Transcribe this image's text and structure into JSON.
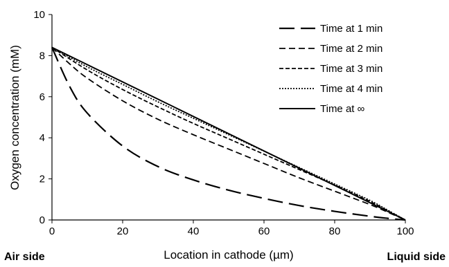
{
  "chart_data": {
    "type": "line",
    "xlabel": "Location in cathode (µm)",
    "ylabel": "Oxygen concentration (mM)",
    "xlim": [
      0,
      100
    ],
    "ylim": [
      0,
      10
    ],
    "x_ticks": [
      "0",
      "20",
      "40",
      "60",
      "80",
      "100"
    ],
    "y_ticks": [
      "0",
      "2",
      "4",
      "6",
      "8",
      "10"
    ],
    "grid": false,
    "legend_position": "top-right",
    "side_labels": {
      "left": "Air side",
      "right": "Liquid side"
    },
    "series": [
      {
        "name": "Time at 1 min",
        "style": "long-dash",
        "x": [
          0,
          5,
          10,
          20,
          30,
          40,
          50,
          60,
          70,
          80,
          90,
          95,
          100
        ],
        "y": [
          8.4,
          6.5,
          5.2,
          3.6,
          2.6,
          1.95,
          1.45,
          1.05,
          0.7,
          0.42,
          0.18,
          0.08,
          0.0
        ]
      },
      {
        "name": "Time at 2 min",
        "style": "dash",
        "x": [
          0,
          5,
          10,
          20,
          30,
          40,
          50,
          60,
          70,
          80,
          90,
          95,
          100
        ],
        "y": [
          8.4,
          7.6,
          6.9,
          5.8,
          4.9,
          4.15,
          3.45,
          2.75,
          2.05,
          1.4,
          0.75,
          0.38,
          0.0
        ]
      },
      {
        "name": "Time at 3 min",
        "style": "short-dash",
        "x": [
          0,
          10,
          20,
          30,
          40,
          50,
          60,
          70,
          80,
          90,
          95,
          100
        ],
        "y": [
          8.4,
          7.3,
          6.35,
          5.5,
          4.7,
          3.95,
          3.2,
          2.45,
          1.7,
          0.9,
          0.45,
          0.0
        ]
      },
      {
        "name": "Time at 4 min",
        "style": "dotted",
        "x": [
          0,
          10,
          20,
          30,
          40,
          50,
          60,
          70,
          80,
          90,
          95,
          100
        ],
        "y": [
          8.4,
          7.45,
          6.6,
          5.75,
          4.95,
          4.15,
          3.35,
          2.55,
          1.75,
          0.95,
          0.48,
          0.0
        ]
      },
      {
        "name": "Time at  ∞",
        "style": "solid",
        "x": [
          0,
          100
        ],
        "y": [
          8.4,
          0.0
        ]
      }
    ]
  }
}
